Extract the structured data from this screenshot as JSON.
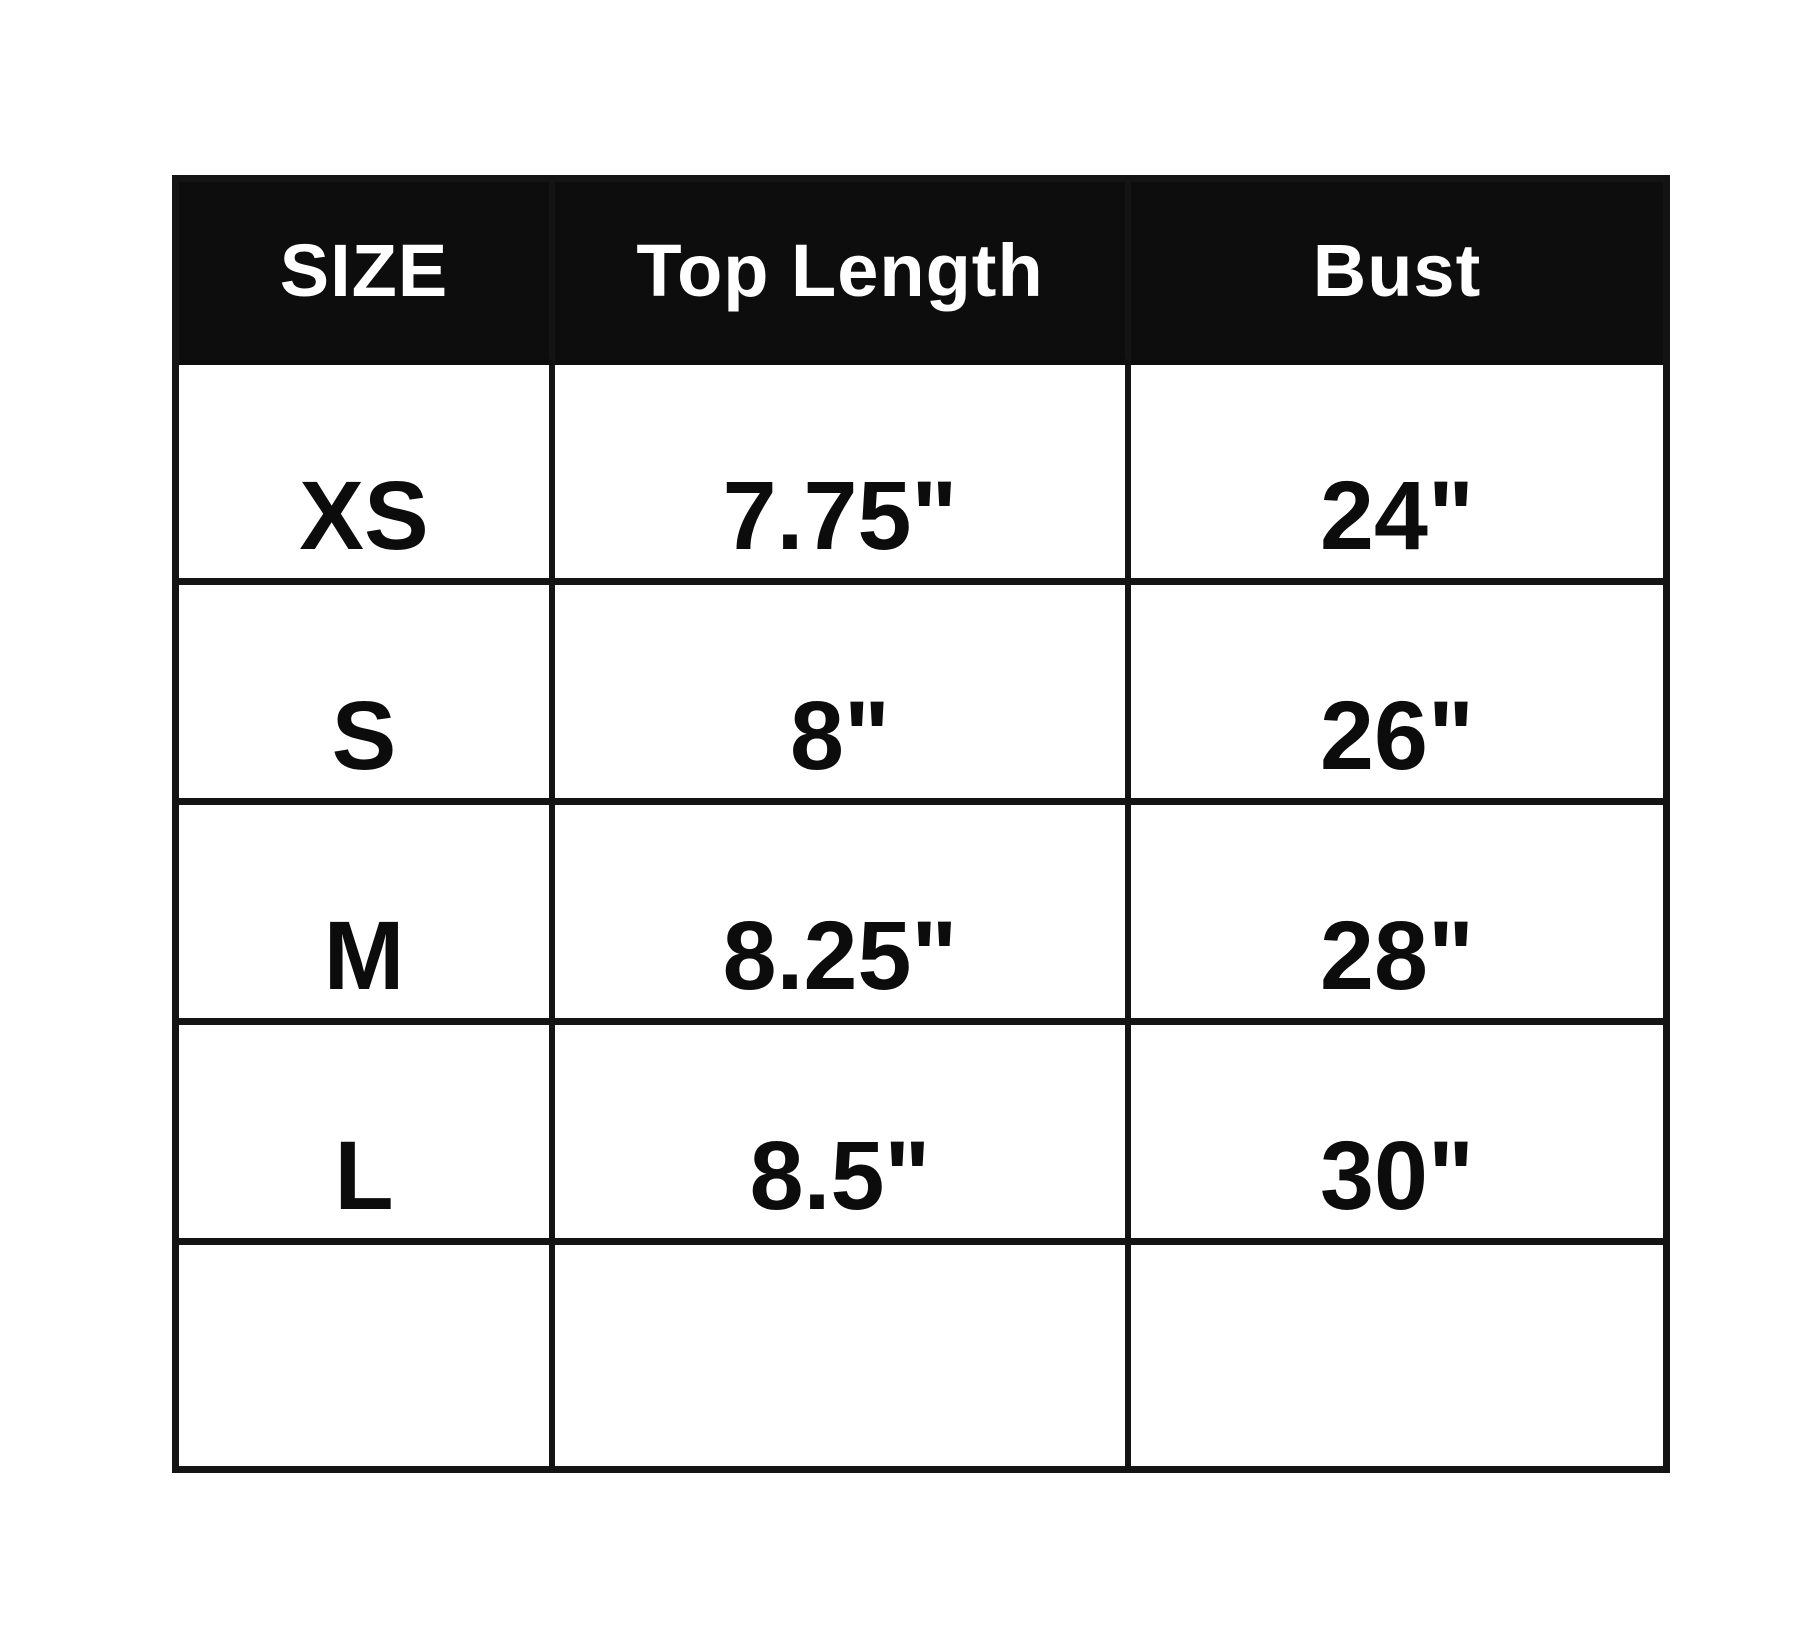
{
  "page": {
    "background_color": "#ffffff",
    "header_bg_color": "#0d0d0d",
    "header_text_color": "#ffffff",
    "grid_line_color": "#141414",
    "body_text_color": "#0c0c0c"
  },
  "table": {
    "columns": [
      "SIZE",
      "Top Length",
      "Bust"
    ],
    "rows": [
      {
        "size": "XS",
        "top_length": "7.75\"",
        "bust": "24\""
      },
      {
        "size": "S",
        "top_length": "8\"",
        "bust": "26\""
      },
      {
        "size": "M",
        "top_length": "8.25\"",
        "bust": "28\""
      },
      {
        "size": "L",
        "top_length": "8.5\"",
        "bust": "30\""
      },
      {
        "size": "",
        "top_length": "",
        "bust": ""
      }
    ]
  },
  "chart_data": {
    "type": "table",
    "title": "",
    "columns": [
      "SIZE",
      "Top Length",
      "Bust"
    ],
    "rows": [
      [
        "XS",
        "7.75\"",
        "24\""
      ],
      [
        "S",
        "8\"",
        "26\""
      ],
      [
        "M",
        "8.25\"",
        "28\""
      ],
      [
        "L",
        "8.5\"",
        "30\""
      ],
      [
        "",
        "",
        ""
      ]
    ],
    "units": "inches",
    "legend_position": "none",
    "grid": true
  }
}
